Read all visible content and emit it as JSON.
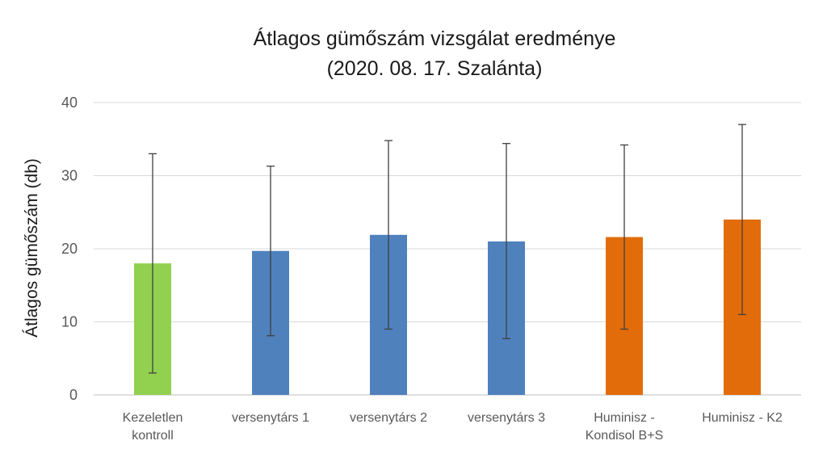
{
  "chart_data": {
    "type": "bar",
    "title": "Átlagos gümőszám vizsgálat eredménye",
    "subtitle": "(2020. 08. 17. Szalánta)",
    "xlabel": "",
    "ylabel": "Átlagos gümőszám (db)",
    "ylim": [
      0,
      40
    ],
    "yticks": [
      0,
      10,
      20,
      30,
      40
    ],
    "grid": true,
    "legend": "none",
    "categories": [
      [
        "Kezeletlen",
        "kontroll"
      ],
      [
        "versenytárs 1"
      ],
      [
        "versenytárs 2"
      ],
      [
        "versenytárs 3"
      ],
      [
        "Huminisz -",
        "Kondisol B+S"
      ],
      [
        "Huminisz - K2"
      ]
    ],
    "values": [
      18,
      19.7,
      21.9,
      21,
      21.6,
      24
    ],
    "error_low": [
      3,
      8.1,
      9,
      7.7,
      9,
      11
    ],
    "error_high": [
      33,
      31.3,
      34.8,
      34.4,
      34.2,
      37
    ],
    "colors": [
      "#92d050",
      "#4f81bd",
      "#4f81bd",
      "#4f81bd",
      "#e36c0a",
      "#e36c0a"
    ]
  }
}
